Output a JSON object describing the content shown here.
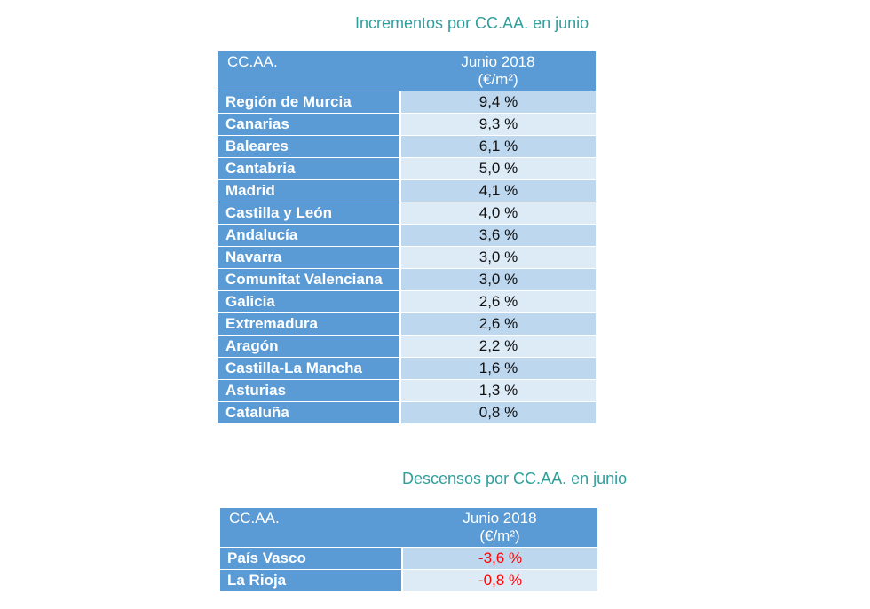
{
  "table1": {
    "title": "Incrementos por CC.AA. en junio",
    "col_name_header": "CC.AA.",
    "col_value_header_line1": "Junio 2018",
    "col_value_header_line2": "(€/m²)",
    "rows": [
      {
        "region": "Región de Murcia",
        "value": "9,4 %"
      },
      {
        "region": "Canarias",
        "value": "9,3 %"
      },
      {
        "region": "Baleares",
        "value": "6,1 %"
      },
      {
        "region": "Cantabria",
        "value": "5,0 %"
      },
      {
        "region": "Madrid",
        "value": "4,1 %"
      },
      {
        "region": "Castilla y León",
        "value": "4,0 %"
      },
      {
        "region": "Andalucía",
        "value": "3,6 %"
      },
      {
        "region": "Navarra",
        "value": "3,0 %"
      },
      {
        "region": "Comunitat Valenciana",
        "value": "3,0 %"
      },
      {
        "region": "Galicia",
        "value": "2,6 %"
      },
      {
        "region": "Extremadura",
        "value": "2,6 %"
      },
      {
        "region": "Aragón",
        "value": "2,2 %"
      },
      {
        "region": "Castilla-La Mancha",
        "value": "1,6 %"
      },
      {
        "region": "Asturias",
        "value": "1,3 %"
      },
      {
        "region": "Cataluña",
        "value": "0,8 %"
      }
    ]
  },
  "table2": {
    "title": "Descensos por CC.AA. en junio",
    "col_name_header": "CC.AA.",
    "col_value_header_line1": "Junio 2018",
    "col_value_header_line2": "(€/m²)",
    "negative_color": "#ff0000",
    "rows": [
      {
        "region": "País Vasco",
        "value": "-3,6 %"
      },
      {
        "region": "La Rioja",
        "value": "-0,8 %"
      }
    ]
  },
  "colors": {
    "title": "#2f9f9c",
    "header_bg": "#5b9bd5",
    "row_odd": "#bdd7ee",
    "row_even": "#ddebf7"
  }
}
